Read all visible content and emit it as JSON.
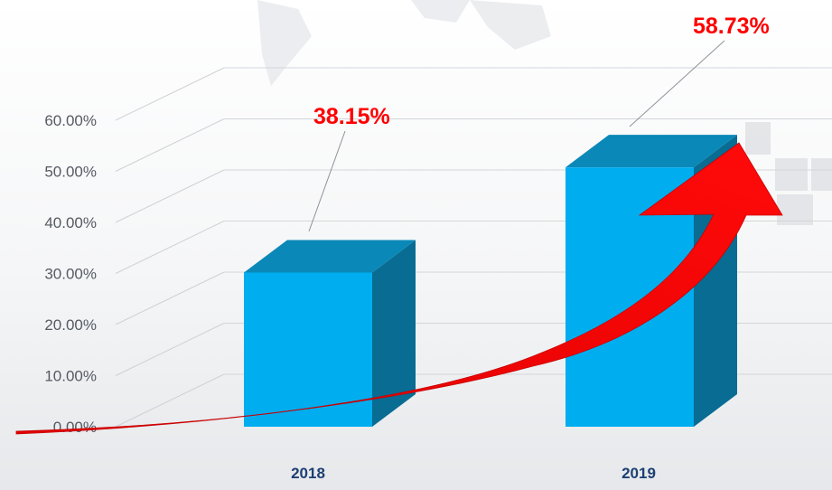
{
  "chart_data": {
    "type": "bar",
    "categories": [
      "2018",
      "2019"
    ],
    "values": [
      38.15,
      58.73
    ],
    "data_labels": [
      "38.15%",
      "58.73%"
    ],
    "yticks": [
      "0.00%",
      "10.00%",
      "20.00%",
      "30.00%",
      "40.00%",
      "50.00%",
      "60.00%"
    ],
    "ylim": [
      0,
      60
    ],
    "grid": true,
    "style": "3d-column",
    "colors": {
      "bar_front": "#00adef",
      "bar_top": "#0a88b8",
      "bar_side": "#086c93",
      "label": "#ff0000",
      "trend_arrow": "#ff0000",
      "tick": "#555a63",
      "category": "#1d3f73"
    }
  }
}
